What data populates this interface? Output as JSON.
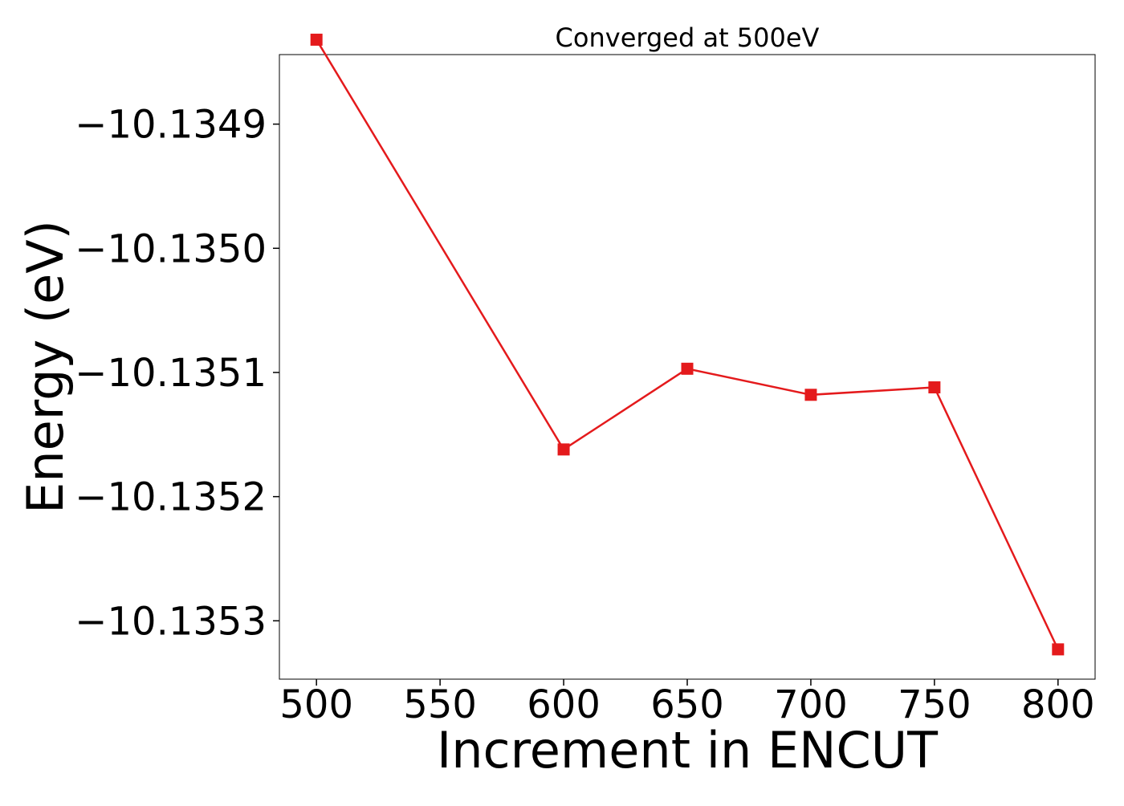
{
  "chart_data": {
    "type": "line",
    "title": "Converged at 500eV",
    "xlabel": "Increment in ENCUT",
    "ylabel": "Energy (eV)",
    "xlim": [
      485,
      815
    ],
    "ylim": [
      -10.135347,
      -10.134844
    ],
    "x_ticks": [
      {
        "value": 500,
        "label": "500"
      },
      {
        "value": 550,
        "label": "550"
      },
      {
        "value": 600,
        "label": "600"
      },
      {
        "value": 650,
        "label": "650"
      },
      {
        "value": 700,
        "label": "700"
      },
      {
        "value": 750,
        "label": "750"
      },
      {
        "value": 800,
        "label": "800"
      }
    ],
    "y_ticks": [
      {
        "value": -10.1349,
        "label": "−10.1349"
      },
      {
        "value": -10.135,
        "label": "−10.1350"
      },
      {
        "value": -10.1351,
        "label": "−10.1351"
      },
      {
        "value": -10.1352,
        "label": "−10.1352"
      },
      {
        "value": -10.1353,
        "label": "−10.1353"
      }
    ],
    "grid": false,
    "legend": "none",
    "series": [
      {
        "color": "#e41a1c",
        "marker": "square",
        "x": [
          500,
          600,
          650,
          700,
          750,
          800
        ],
        "y": [
          -10.134832,
          -10.135162,
          -10.135097,
          -10.135118,
          -10.135112,
          -10.135323
        ]
      }
    ]
  }
}
